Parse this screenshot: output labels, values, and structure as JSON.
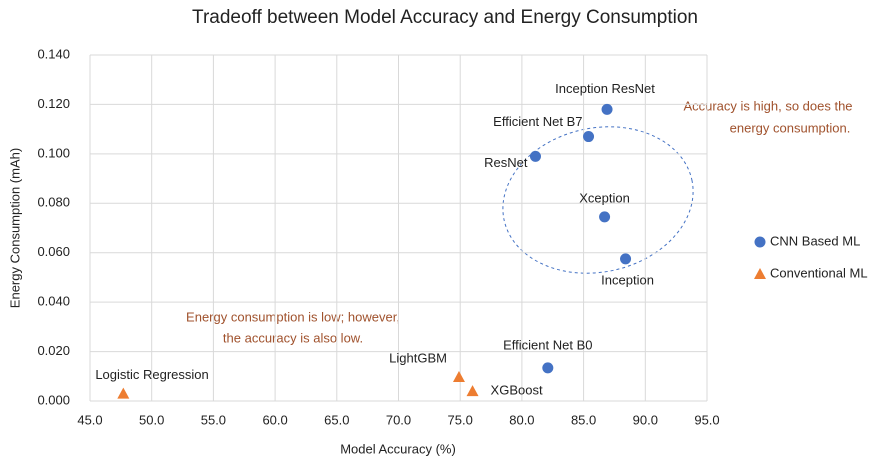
{
  "chart_data": {
    "type": "scatter",
    "title": "Tradeoff between Model Accuracy and Energy Consumption",
    "x_label": "Model Accuracy (%)",
    "y_label": "Energy Consumption (mAh)",
    "xlim": [
      45,
      95
    ],
    "ylim": [
      0,
      0.14
    ],
    "xticks": [
      {
        "value": 45,
        "label": "45.0"
      },
      {
        "value": 50,
        "label": "50.0"
      },
      {
        "value": 55,
        "label": "55.0"
      },
      {
        "value": 60,
        "label": "60.0"
      },
      {
        "value": 65,
        "label": "65.0"
      },
      {
        "value": 70,
        "label": "70.0"
      },
      {
        "value": 75,
        "label": "75.0"
      },
      {
        "value": 80,
        "label": "80.0"
      },
      {
        "value": 85,
        "label": "85.0"
      },
      {
        "value": 90,
        "label": "90.0"
      },
      {
        "value": 95,
        "label": "95.0"
      }
    ],
    "yticks": [
      {
        "value": 0,
        "label": "0.000"
      },
      {
        "value": 0.02,
        "label": "0.020"
      },
      {
        "value": 0.04,
        "label": "0.040"
      },
      {
        "value": 0.06,
        "label": "0.060"
      },
      {
        "value": 0.08,
        "label": "0.080"
      },
      {
        "value": 0.1,
        "label": "0.100"
      },
      {
        "value": 0.12,
        "label": "0.120"
      },
      {
        "value": 0.14,
        "label": "0.140"
      }
    ],
    "grid": true,
    "legend": "right",
    "series": [
      {
        "name": "CNN Based ML",
        "color": "#4472c4",
        "marker": "circle",
        "labels": [
          "Inception ResNet",
          "Efficient Net B7",
          "ResNet",
          "Xception",
          "Inception",
          "Efficient Net B0"
        ],
        "x": [
          86.9,
          85.4,
          81.1,
          86.7,
          88.4,
          82.1
        ],
        "values": [
          0.118,
          0.107,
          0.099,
          0.0745,
          0.0575,
          0.0134
        ]
      },
      {
        "name": "Conventional ML",
        "color": "#ed7d31",
        "marker": "triangle",
        "labels": [
          "Logistic Regression",
          "LightGBM",
          "XGBoost"
        ],
        "x": [
          47.7,
          74.9,
          76.0
        ],
        "values": [
          0.003,
          0.0097,
          0.004
        ]
      }
    ],
    "annotations": [
      "Accuracy is high, so does the",
      "energy consumption.",
      "Energy consumption is low; however,",
      "the accuracy is also low."
    ]
  }
}
